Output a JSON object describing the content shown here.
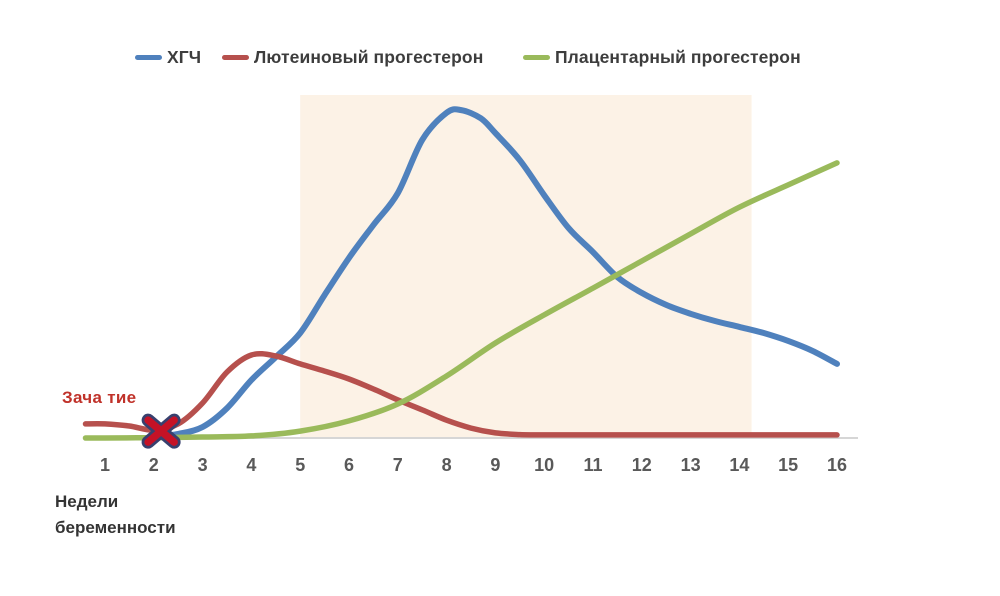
{
  "legend": {
    "items": [
      {
        "label": "ХГЧ",
        "color": "#4f81bd"
      },
      {
        "label": "Лютеиновый прогестерон",
        "color": "#b6504d"
      },
      {
        "label": "Плацентарный прогестерон",
        "color": "#9aba5b"
      }
    ]
  },
  "annotations": {
    "conception": {
      "label": "Зача тие",
      "color": "#c0322a"
    }
  },
  "axis": {
    "label_line1": "Недели",
    "label_line2": "беременности",
    "tick_color": "#595959",
    "baseline_color": "#d6d6d6"
  },
  "chart_data": {
    "type": "line",
    "title": "",
    "xlabel": "Недели беременности",
    "ylabel": "",
    "x_range": [
      1,
      16
    ],
    "x_ticks": [
      "1",
      "2",
      "3",
      "4",
      "5",
      "6",
      "7",
      "8",
      "9",
      "10",
      "11",
      "12",
      "13",
      "14",
      "15",
      "16"
    ],
    "value_units": "relative level, 0-100 of chart height (no y axis shown)",
    "grid": false,
    "legend_position": "top",
    "highlight_region": {
      "from_week": 5,
      "to_week": 14.25,
      "top_value": 100,
      "color": "#fcf2e6"
    },
    "series": [
      {
        "id": "hcg",
        "name": "ХГЧ",
        "color": "#4f81bd",
        "width": 6,
        "points": [
          [
            2,
            0.3
          ],
          [
            2.5,
            1.2
          ],
          [
            3,
            3.2
          ],
          [
            3.5,
            8.7
          ],
          [
            4,
            16.9
          ],
          [
            4.5,
            23.6
          ],
          [
            5,
            30.6
          ],
          [
            5.5,
            41.7
          ],
          [
            6,
            52.5
          ],
          [
            6.5,
            62.1
          ],
          [
            7,
            71.4
          ],
          [
            7.5,
            86.9
          ],
          [
            8,
            94.8
          ],
          [
            8.3,
            95.6
          ],
          [
            8.7,
            93.2
          ],
          [
            9,
            88.9
          ],
          [
            9.5,
            81
          ],
          [
            10,
            70.8
          ],
          [
            10.5,
            61.2
          ],
          [
            11,
            54.2
          ],
          [
            11.5,
            46.9
          ],
          [
            12,
            42.3
          ],
          [
            12.5,
            38.8
          ],
          [
            13,
            36.2
          ],
          [
            13.5,
            34.1
          ],
          [
            14,
            32.4
          ],
          [
            14.5,
            30.6
          ],
          [
            15,
            28.3
          ],
          [
            15.5,
            25.4
          ],
          [
            16,
            21.6
          ]
        ]
      },
      {
        "id": "luteal-progesterone",
        "name": "Лютеиновый прогестерон",
        "color": "#b6504d",
        "width": 5.5,
        "points": [
          [
            0.6,
            4.1
          ],
          [
            1,
            4.1
          ],
          [
            1.5,
            3.5
          ],
          [
            2,
            2.3
          ],
          [
            2.5,
            4.1
          ],
          [
            3,
            10.2
          ],
          [
            3.5,
            19.2
          ],
          [
            4,
            24.2
          ],
          [
            4.5,
            23.9
          ],
          [
            5,
            21.6
          ],
          [
            5.5,
            19.5
          ],
          [
            6,
            17.2
          ],
          [
            6.5,
            14.3
          ],
          [
            7,
            11.1
          ],
          [
            7.5,
            8.2
          ],
          [
            8,
            5.2
          ],
          [
            8.5,
            2.9
          ],
          [
            9,
            1.5
          ],
          [
            9.5,
            1
          ],
          [
            10,
            0.9
          ],
          [
            11,
            0.9
          ],
          [
            12,
            0.9
          ],
          [
            13,
            0.9
          ],
          [
            14,
            0.9
          ],
          [
            15,
            0.9
          ],
          [
            16,
            0.9
          ]
        ]
      },
      {
        "id": "placental-progesterone",
        "name": "Плацентарный прогестерон",
        "color": "#9aba5b",
        "width": 5.5,
        "points": [
          [
            0.6,
            0
          ],
          [
            1,
            0
          ],
          [
            2,
            0.1
          ],
          [
            3,
            0.3
          ],
          [
            4,
            0.6
          ],
          [
            5,
            2
          ],
          [
            6,
            5
          ],
          [
            7,
            9.9
          ],
          [
            8,
            18.1
          ],
          [
            9,
            27.7
          ],
          [
            10,
            35.9
          ],
          [
            11,
            43.7
          ],
          [
            12,
            51.6
          ],
          [
            13,
            59.5
          ],
          [
            14,
            67.3
          ],
          [
            15,
            73.8
          ],
          [
            16,
            80.2
          ]
        ]
      }
    ],
    "marker": {
      "type": "x-cross",
      "meaning": "Зача тие (conception)",
      "week": 2.15,
      "value": 2,
      "fill": "#c51226",
      "outline": "#38406e"
    }
  }
}
